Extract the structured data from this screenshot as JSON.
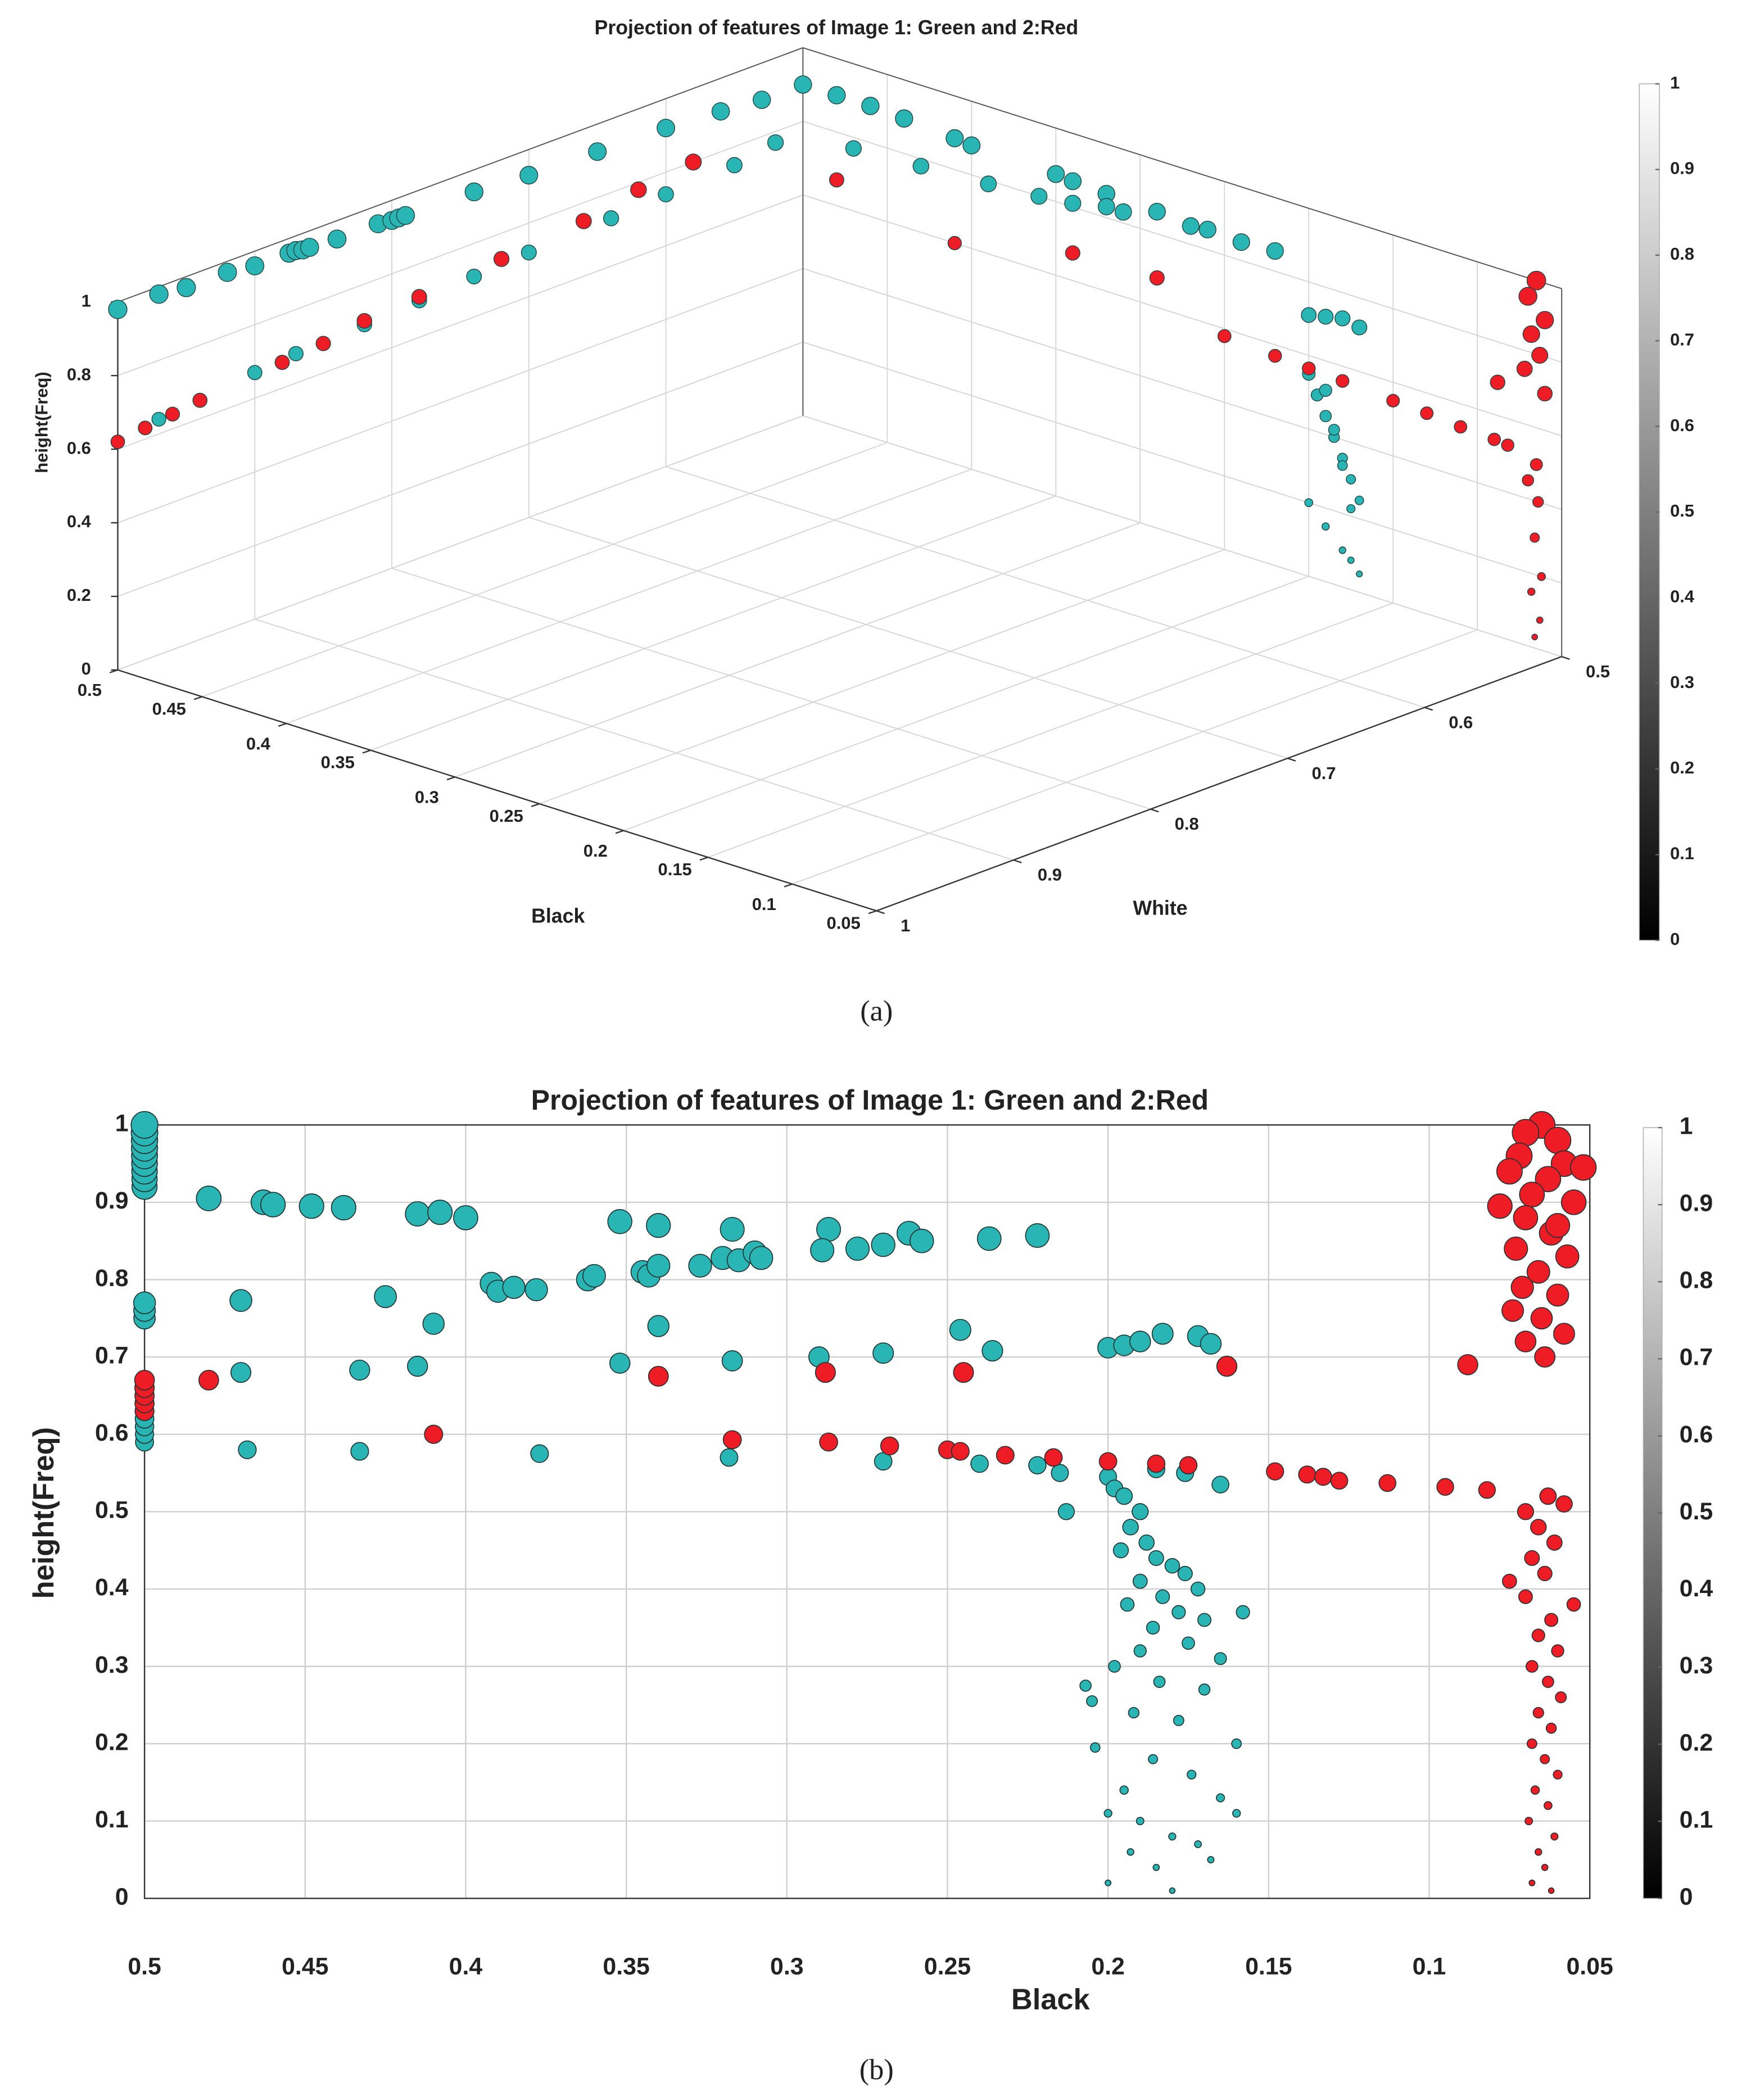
{
  "chart_data": [
    {
      "type": "scatter3d",
      "title": "Projection of features of Image 1: Green and 2:Red",
      "caption": "(a)",
      "xlabel": "Black",
      "ylabel": "White",
      "zlabel": "height(Freq)",
      "xlim": [
        0.5,
        0.05
      ],
      "xticks": [
        0.5,
        0.45,
        0.4,
        0.35,
        0.3,
        0.25,
        0.2,
        0.15,
        0.1,
        0.05
      ],
      "ylim": [
        1,
        0.5
      ],
      "yticks": [
        1,
        0.9,
        0.8,
        0.7,
        0.6,
        0.5
      ],
      "zlim": [
        0,
        1
      ],
      "zticks": [
        0,
        0.2,
        0.4,
        0.6,
        0.8,
        1
      ],
      "grid": true,
      "colormap": "gray",
      "clim": [
        0,
        1
      ],
      "cticks": [
        0,
        0.1,
        0.2,
        0.3,
        0.4,
        0.5,
        0.6,
        0.7,
        0.8,
        0.9,
        1
      ],
      "series": [
        {
          "color": "#2ab5b5",
          "x": [
            0.5,
            0.5,
            0.5,
            0.5,
            0.5,
            0.5,
            0.5,
            0.5,
            0.5,
            0.5,
            0.5,
            0.5,
            0.5,
            0.5,
            0.5,
            0.5,
            0.5,
            0.5,
            0.5,
            0.5,
            0.5,
            0.5,
            0.5,
            0.5,
            0.5,
            0.5,
            0.5,
            0.5,
            0.5,
            0.5,
            0.5,
            0.5,
            0.5,
            0.48,
            0.46,
            0.44,
            0.41,
            0.4,
            0.35,
            0.34,
            0.32,
            0.29,
            0.27,
            0.26,
            0.24,
            0.22,
            0.2,
            0.19,
            0.18,
            0.17,
            0.47,
            0.43,
            0.39,
            0.36,
            0.34,
            0.32,
            0.31,
            0.2,
            0.195,
            0.19,
            0.185,
            0.18,
            0.175,
            0.17,
            0.2,
            0.19,
            0.18,
            0.175,
            0.17,
            0.19,
            0.185,
            0.18,
            0.175
          ],
          "y": [
            1,
            0.97,
            0.95,
            0.92,
            0.9,
            0.875,
            0.87,
            0.865,
            0.86,
            0.84,
            0.81,
            0.8,
            0.795,
            0.79,
            0.74,
            0.7,
            0.65,
            0.6,
            0.56,
            0.53,
            0.5,
            0.97,
            0.94,
            0.9,
            0.87,
            0.82,
            0.78,
            0.74,
            0.7,
            0.64,
            0.6,
            0.55,
            0.52,
            0.5,
            0.5,
            0.5,
            0.5,
            0.5,
            0.5,
            0.5,
            0.5,
            0.5,
            0.5,
            0.5,
            0.5,
            0.5,
            0.5,
            0.5,
            0.5,
            0.5,
            0.5,
            0.5,
            0.5,
            0.5,
            0.5,
            0.5,
            0.5,
            0.5,
            0.5,
            0.5,
            0.5,
            0.5,
            0.5,
            0.5,
            0.5,
            0.5,
            0.5,
            0.5,
            0.5,
            0.5,
            0.5,
            0.5,
            0.5
          ],
          "z": [
            0.98,
            0.98,
            0.97,
            0.97,
            0.96,
            0.96,
            0.96,
            0.955,
            0.955,
            0.95,
            0.95,
            0.945,
            0.945,
            0.945,
            0.94,
            0.93,
            0.925,
            0.92,
            0.91,
            0.9,
            0.9,
            0.64,
            0.65,
            0.67,
            0.68,
            0.69,
            0.7,
            0.71,
            0.72,
            0.73,
            0.74,
            0.75,
            0.77,
            0.9,
            0.9,
            0.895,
            0.885,
            0.88,
            0.875,
            0.87,
            0.865,
            0.86,
            0.85,
            0.855,
            0.85,
            0.855,
            0.71,
            0.72,
            0.73,
            0.72,
            0.77,
            0.78,
            0.79,
            0.8,
            0.81,
            0.83,
            0.83,
            0.55,
            0.5,
            0.45,
            0.4,
            0.35,
            0.3,
            0.25,
            0.2,
            0.15,
            0.1,
            0.08,
            0.05,
            0.52,
            0.42,
            0.33,
            0.22
          ]
        },
        {
          "color": "#ee1c24",
          "x": [
            0.5,
            0.5,
            0.5,
            0.5,
            0.5,
            0.5,
            0.5,
            0.5,
            0.5,
            0.5,
            0.5,
            0.5,
            0.48,
            0.41,
            0.34,
            0.29,
            0.25,
            0.22,
            0.2,
            0.18,
            0.15,
            0.13,
            0.11,
            0.09,
            0.082,
            0.088,
            0.065,
            0.07,
            0.06,
            0.068,
            0.063,
            0.072,
            0.06,
            0.065,
            0.07,
            0.064,
            0.066,
            0.062,
            0.068,
            0.063,
            0.066
          ],
          "y": [
            1,
            0.98,
            0.96,
            0.94,
            0.88,
            0.85,
            0.82,
            0.78,
            0.72,
            0.66,
            0.62,
            0.58,
            0.5,
            0.5,
            0.5,
            0.5,
            0.5,
            0.5,
            0.5,
            0.5,
            0.5,
            0.5,
            0.5,
            0.5,
            0.5,
            0.5,
            0.5,
            0.5,
            0.5,
            0.5,
            0.5,
            0.5,
            0.5,
            0.5,
            0.5,
            0.5,
            0.5,
            0.5,
            0.5,
            0.5,
            0.5
          ],
          "z": [
            0.62,
            0.63,
            0.64,
            0.65,
            0.67,
            0.68,
            0.7,
            0.71,
            0.73,
            0.75,
            0.78,
            0.8,
            0.67,
            0.6,
            0.675,
            0.68,
            0.58,
            0.57,
            0.565,
            0.56,
            0.55,
            0.545,
            0.537,
            0.532,
            0.528,
            0.69,
            1.0,
            0.95,
            0.9,
            0.85,
            0.8,
            0.75,
            0.7,
            0.5,
            0.45,
            0.4,
            0.3,
            0.2,
            0.15,
            0.08,
            0.03
          ]
        }
      ]
    },
    {
      "type": "scatter",
      "title": "Projection of features of Image 1: Green and 2:Red",
      "caption": "(b)",
      "xlabel": "Black",
      "ylabel": "height(Freq)",
      "xlim": [
        0.5,
        0.05
      ],
      "xticks": [
        0.5,
        0.45,
        0.4,
        0.35,
        0.3,
        0.25,
        0.2,
        0.15,
        0.1,
        0.05
      ],
      "ylim": [
        0,
        1
      ],
      "yticks": [
        0,
        0.1,
        0.2,
        0.3,
        0.4,
        0.5,
        0.6,
        0.7,
        0.8,
        0.9,
        1
      ],
      "grid": true,
      "colormap": "gray",
      "clim": [
        0,
        1
      ],
      "cticks": [
        0,
        0.1,
        0.2,
        0.3,
        0.4,
        0.5,
        0.6,
        0.7,
        0.8,
        0.9,
        1
      ],
      "series": [
        {
          "color": "#2ab5b5",
          "x": [
            0.5,
            0.5,
            0.5,
            0.5,
            0.5,
            0.5,
            0.5,
            0.5,
            0.5,
            0.5,
            0.5,
            0.5,
            0.5,
            0.5,
            0.5,
            0.5,
            0.5,
            0.5,
            0.48,
            0.463,
            0.46,
            0.448,
            0.438,
            0.415,
            0.408,
            0.4,
            0.352,
            0.34,
            0.317,
            0.287,
            0.27,
            0.278,
            0.289,
            0.262,
            0.258,
            0.237,
            0.222,
            0.392,
            0.39,
            0.385,
            0.378,
            0.362,
            0.36,
            0.345,
            0.343,
            0.34,
            0.327,
            0.32,
            0.315,
            0.31,
            0.308,
            0.425,
            0.47,
            0.41,
            0.47,
            0.433,
            0.415,
            0.352,
            0.34,
            0.317,
            0.29,
            0.27,
            0.246,
            0.236,
            0.2,
            0.195,
            0.19,
            0.183,
            0.172,
            0.168,
            0.468,
            0.433,
            0.377,
            0.318,
            0.27,
            0.24,
            0.222,
            0.215,
            0.213,
            0.2,
            0.198,
            0.195,
            0.19,
            0.193,
            0.188,
            0.196,
            0.185,
            0.18,
            0.176,
            0.19,
            0.172,
            0.183,
            0.194,
            0.178,
            0.17,
            0.186,
            0.158,
            0.175,
            0.19,
            0.198,
            0.165,
            0.184,
            0.17,
            0.207,
            0.205,
            0.192,
            0.178,
            0.16,
            0.204,
            0.186,
            0.174,
            0.195,
            0.165,
            0.2,
            0.19,
            0.18,
            0.172,
            0.193,
            0.185,
            0.168,
            0.2,
            0.18,
            0.16,
            0.176,
            0.165,
            0.185
          ],
          "y": [
            0.92,
            0.93,
            0.94,
            0.95,
            0.96,
            0.97,
            0.98,
            0.99,
            1.0,
            0.75,
            0.76,
            0.77,
            0.59,
            0.6,
            0.61,
            0.62,
            0.63,
            0.64,
            0.905,
            0.9,
            0.897,
            0.895,
            0.893,
            0.885,
            0.887,
            0.88,
            0.875,
            0.87,
            0.865,
            0.865,
            0.845,
            0.84,
            0.838,
            0.86,
            0.85,
            0.853,
            0.857,
            0.795,
            0.785,
            0.79,
            0.787,
            0.8,
            0.805,
            0.81,
            0.805,
            0.818,
            0.818,
            0.828,
            0.825,
            0.835,
            0.828,
            0.778,
            0.773,
            0.743,
            0.68,
            0.683,
            0.688,
            0.692,
            0.74,
            0.695,
            0.7,
            0.705,
            0.735,
            0.708,
            0.712,
            0.715,
            0.72,
            0.73,
            0.727,
            0.717,
            0.58,
            0.578,
            0.575,
            0.57,
            0.565,
            0.562,
            0.56,
            0.55,
            0.5,
            0.545,
            0.53,
            0.52,
            0.5,
            0.48,
            0.46,
            0.45,
            0.44,
            0.43,
            0.42,
            0.41,
            0.4,
            0.39,
            0.38,
            0.37,
            0.36,
            0.35,
            0.37,
            0.33,
            0.32,
            0.3,
            0.31,
            0.28,
            0.27,
            0.275,
            0.255,
            0.24,
            0.23,
            0.2,
            0.195,
            0.18,
            0.16,
            0.14,
            0.13,
            0.11,
            0.1,
            0.08,
            0.07,
            0.06,
            0.04,
            0.05,
            0.02,
            0.01,
            0.11,
            0.55,
            0.535,
            0.555
          ]
        },
        {
          "color": "#ee1c24",
          "x": [
            0.5,
            0.5,
            0.5,
            0.5,
            0.5,
            0.48,
            0.41,
            0.34,
            0.317,
            0.288,
            0.287,
            0.268,
            0.25,
            0.245,
            0.246,
            0.232,
            0.217,
            0.2,
            0.185,
            0.175,
            0.163,
            0.148,
            0.138,
            0.133,
            0.128,
            0.113,
            0.095,
            0.082,
            0.088,
            0.065,
            0.07,
            0.06,
            0.072,
            0.058,
            0.075,
            0.063,
            0.052,
            0.068,
            0.078,
            0.055,
            0.07,
            0.062,
            0.073,
            0.057,
            0.066,
            0.071,
            0.06,
            0.074,
            0.065,
            0.058,
            0.07,
            0.064,
            0.06,
            0.063,
            0.058,
            0.07,
            0.066,
            0.061,
            0.068,
            0.064,
            0.075,
            0.055,
            0.07,
            0.062,
            0.066,
            0.06,
            0.068,
            0.063,
            0.059,
            0.066,
            0.062,
            0.068,
            0.064,
            0.06,
            0.067,
            0.063,
            0.069,
            0.061,
            0.066,
            0.064,
            0.068,
            0.062
          ],
          "y": [
            0.63,
            0.64,
            0.65,
            0.66,
            0.67,
            0.67,
            0.6,
            0.675,
            0.593,
            0.68,
            0.59,
            0.585,
            0.58,
            0.68,
            0.578,
            0.573,
            0.57,
            0.565,
            0.562,
            0.56,
            0.688,
            0.552,
            0.548,
            0.545,
            0.54,
            0.537,
            0.532,
            0.528,
            0.69,
            1.0,
            0.99,
            0.98,
            0.96,
            0.95,
            0.94,
            0.93,
            0.945,
            0.91,
            0.895,
            0.9,
            0.88,
            0.86,
            0.84,
            0.83,
            0.81,
            0.79,
            0.78,
            0.76,
            0.75,
            0.73,
            0.72,
            0.7,
            0.87,
            0.52,
            0.51,
            0.5,
            0.48,
            0.46,
            0.44,
            0.42,
            0.41,
            0.38,
            0.39,
            0.36,
            0.34,
            0.32,
            0.3,
            0.28,
            0.26,
            0.24,
            0.22,
            0.2,
            0.18,
            0.16,
            0.14,
            0.12,
            0.1,
            0.08,
            0.06,
            0.04,
            0.02,
            0.01
          ]
        }
      ]
    }
  ]
}
